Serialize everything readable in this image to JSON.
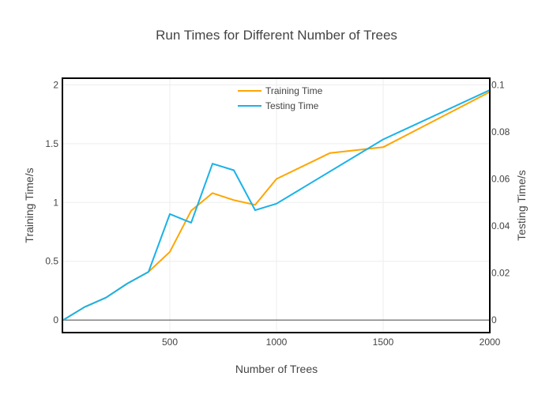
{
  "chart_data": {
    "type": "line",
    "title": "Run Times for Different Number of Trees",
    "xlabel": "Number of Trees",
    "ylabel_left": "Training Time/s",
    "ylabel_right": "Testing Time/s",
    "xlim": [
      0,
      2000
    ],
    "ylim_left": [
      -0.1,
      2.05
    ],
    "ylim_right": [
      -0.005,
      0.1025
    ],
    "x_ticks": [
      500,
      1000,
      1500,
      2000
    ],
    "y_left_ticks": [
      0,
      0.5,
      1,
      1.5,
      2
    ],
    "y_right_ticks": [
      0,
      0.02,
      0.04,
      0.06,
      0.08,
      0.1
    ],
    "grid": true,
    "legend_position": "top-center",
    "series": [
      {
        "name": "Training Time",
        "axis": "left",
        "color": "#ffa500",
        "x": [
          0,
          100,
          200,
          300,
          400,
          500,
          600,
          700,
          800,
          900,
          1000,
          1250,
          1500,
          2000
        ],
        "y": [
          0.0,
          0.11,
          0.19,
          0.31,
          0.41,
          0.58,
          0.93,
          1.08,
          1.02,
          0.98,
          1.2,
          1.42,
          1.47,
          1.94
        ]
      },
      {
        "name": "Testing Time",
        "axis": "right",
        "color": "#1ab2e8",
        "x": [
          0,
          100,
          200,
          300,
          400,
          500,
          600,
          700,
          800,
          900,
          1000,
          1500,
          2000
        ],
        "y": [
          0.0,
          0.0055,
          0.0095,
          0.0155,
          0.0205,
          0.0451,
          0.0414,
          0.0665,
          0.0637,
          0.0467,
          0.0495,
          0.0768,
          0.0978
        ]
      }
    ]
  }
}
